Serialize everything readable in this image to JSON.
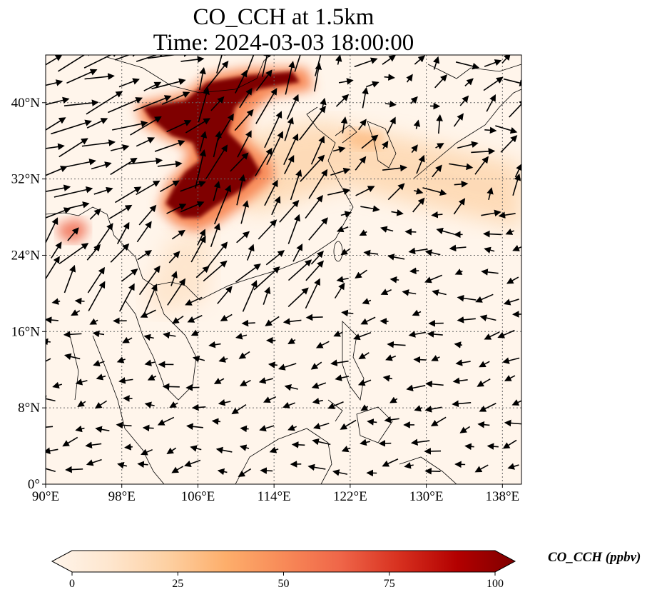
{
  "title": {
    "line1": "CO_CCH at 1.5km",
    "line2": "Time: 2024-03-03 18:00:00"
  },
  "map": {
    "lon_range": [
      90,
      140
    ],
    "lat_range": [
      0,
      45
    ],
    "lon_ticks": [
      {
        "v": 90,
        "label": "90°E"
      },
      {
        "v": 98,
        "label": "98°E"
      },
      {
        "v": 106,
        "label": "106°E"
      },
      {
        "v": 114,
        "label": "114°E"
      },
      {
        "v": 122,
        "label": "122°E"
      },
      {
        "v": 130,
        "label": "130°E"
      },
      {
        "v": 138,
        "label": "138°E"
      }
    ],
    "lat_ticks": [
      {
        "v": 0,
        "label": "0°"
      },
      {
        "v": 8,
        "label": "8°N"
      },
      {
        "v": 16,
        "label": "16°N"
      },
      {
        "v": 24,
        "label": "24°N"
      },
      {
        "v": 32,
        "label": "32°N"
      },
      {
        "v": 40,
        "label": "40°N"
      }
    ],
    "gridlines": true
  },
  "colorbar": {
    "label": "CO_CCH (ppbv)",
    "range": [
      0,
      100
    ],
    "extend": "both",
    "ticks": [
      {
        "v": 0,
        "label": "0"
      },
      {
        "v": 25,
        "label": "25"
      },
      {
        "v": 50,
        "label": "50"
      },
      {
        "v": 75,
        "label": "75"
      },
      {
        "v": 100,
        "label": "100"
      }
    ],
    "colors": [
      "#fff5eb",
      "#fee6ce",
      "#fdd0a2",
      "#fdae6b",
      "#f88a58",
      "#ef6548",
      "#d7301f",
      "#b30000",
      "#7f0000"
    ]
  }
}
